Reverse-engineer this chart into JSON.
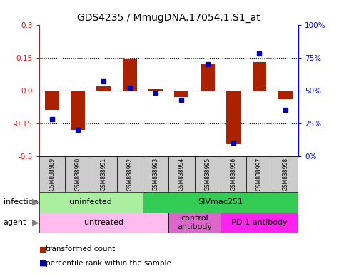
{
  "title": "GDS4235 / MmugDNA.17054.1.S1_at",
  "samples": [
    "GSM838989",
    "GSM838990",
    "GSM838991",
    "GSM838992",
    "GSM838993",
    "GSM838994",
    "GSM838995",
    "GSM838996",
    "GSM838997",
    "GSM838998"
  ],
  "transformed_count": [
    -0.09,
    -0.18,
    0.02,
    0.145,
    0.005,
    -0.03,
    0.12,
    -0.245,
    0.13,
    -0.04
  ],
  "percentile_rank": [
    28,
    20,
    57,
    52,
    48,
    43,
    70,
    10,
    78,
    35
  ],
  "ylim": [
    -0.3,
    0.3
  ],
  "yticks_left": [
    -0.3,
    -0.15,
    0.0,
    0.15,
    0.3
  ],
  "yticks_right": [
    0,
    25,
    50,
    75,
    100
  ],
  "infection_groups": [
    {
      "label": "uninfected",
      "start": 0,
      "end": 4,
      "color": "#AAEEA0"
    },
    {
      "label": "SIVmac251",
      "start": 4,
      "end": 10,
      "color": "#33CC55"
    }
  ],
  "agent_groups": [
    {
      "label": "untreated",
      "start": 0,
      "end": 5,
      "color": "#FFBBEE"
    },
    {
      "label": "control\nantibody",
      "start": 5,
      "end": 7,
      "color": "#DD66CC"
    },
    {
      "label": "PD-1 antibody",
      "start": 7,
      "end": 10,
      "color": "#FF22EE"
    }
  ],
  "bar_color": "#AA2200",
  "dot_color": "#0000BB",
  "zero_line_color": "#CC0000",
  "dotted_line_color": "#000000",
  "sample_bg_color": "#CCCCCC",
  "bar_width": 0.55,
  "fig_width": 4.75,
  "fig_height": 3.84,
  "dpi": 100
}
